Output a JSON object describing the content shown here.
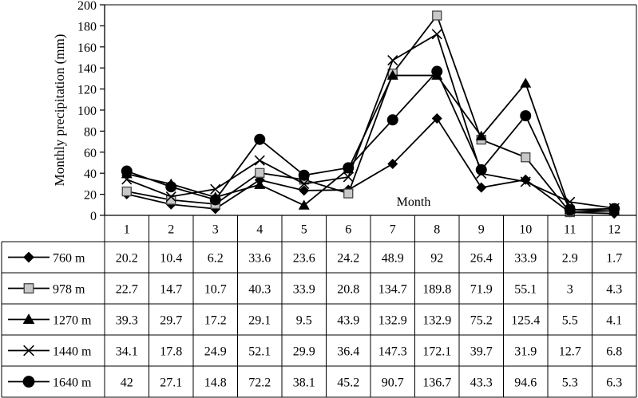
{
  "chart_data": {
    "type": "line",
    "ylabel": "Monthly precipitation (mm)",
    "xlabel": "Month",
    "ylim": [
      0,
      200
    ],
    "yticks": [
      0,
      20,
      40,
      60,
      80,
      100,
      120,
      140,
      160,
      180,
      200
    ],
    "categories": [
      "1",
      "2",
      "3",
      "4",
      "5",
      "6",
      "7",
      "8",
      "9",
      "10",
      "11",
      "12"
    ],
    "grid": false,
    "legend": "data-table",
    "series": [
      {
        "name": "760 m",
        "marker": "diamond",
        "color": "#000000",
        "values": [
          20.2,
          10.4,
          6.2,
          33.6,
          23.6,
          24.2,
          48.9,
          92,
          26.4,
          33.9,
          2.9,
          1.7
        ]
      },
      {
        "name": "978 m",
        "marker": "square-open",
        "color": "#000000",
        "values": [
          22.7,
          14.7,
          10.7,
          40.3,
          33.9,
          20.8,
          134.7,
          189.8,
          71.9,
          55.1,
          3,
          4.3
        ]
      },
      {
        "name": "1270 m",
        "marker": "triangle",
        "color": "#000000",
        "values": [
          39.3,
          29.7,
          17.2,
          29.1,
          9.5,
          43.9,
          132.9,
          132.9,
          75.2,
          125.4,
          5.5,
          4.1
        ]
      },
      {
        "name": "1440 m",
        "marker": "x",
        "color": "#000000",
        "values": [
          34.1,
          17.8,
          24.9,
          52.1,
          29.9,
          36.4,
          147.3,
          172.1,
          39.7,
          31.9,
          12.7,
          6.8
        ]
      },
      {
        "name": "1640 m",
        "marker": "circle",
        "color": "#000000",
        "values": [
          42,
          27.1,
          14.8,
          72.2,
          38.1,
          45.2,
          90.7,
          136.7,
          43.3,
          94.6,
          5.3,
          6.3
        ]
      }
    ]
  }
}
